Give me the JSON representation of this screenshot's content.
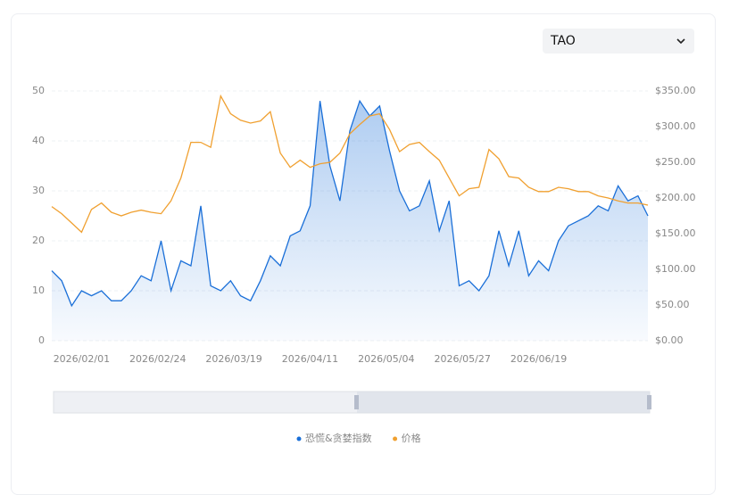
{
  "selector": {
    "value": "TAO"
  },
  "chart_data": {
    "type": "line",
    "x": [
      "2026/01/23",
      "2026/01/26",
      "2026/01/29",
      "2026/02/01",
      "2026/02/04",
      "2026/02/07",
      "2026/02/10",
      "2026/02/13",
      "2026/02/16",
      "2026/02/19",
      "2026/02/22",
      "2026/02/25",
      "2026/02/28",
      "2026/03/03",
      "2026/03/06",
      "2026/03/09",
      "2026/03/12",
      "2026/03/15",
      "2026/03/18",
      "2026/03/21",
      "2026/03/24",
      "2026/03/27",
      "2026/03/30",
      "2026/04/02",
      "2026/04/05",
      "2026/04/08",
      "2026/04/11",
      "2026/04/14",
      "2026/04/17",
      "2026/04/20",
      "2026/04/23",
      "2026/04/26",
      "2026/04/29",
      "2026/05/02",
      "2026/05/05",
      "2026/05/08",
      "2026/05/11",
      "2026/05/14",
      "2026/05/17",
      "2026/05/20",
      "2026/05/23",
      "2026/05/26",
      "2026/05/29",
      "2026/06/01",
      "2026/06/04",
      "2026/06/07",
      "2026/06/10",
      "2026/06/13",
      "2026/06/16",
      "2026/06/19",
      "2026/06/22",
      "2026/06/25",
      "2026/06/28",
      "2026/07/01",
      "2026/07/04",
      "2026/07/07",
      "2026/07/10",
      "2026/07/13",
      "2026/07/16",
      "2026/07/19",
      "2026/07/22"
    ],
    "xlim": [
      "2026/01/23",
      "2026/07/22"
    ],
    "xticks": [
      "2026/02/01",
      "2026/02/24",
      "2026/03/19",
      "2026/04/11",
      "2026/05/04",
      "2026/05/27",
      "2026/06/19"
    ],
    "series": [
      {
        "name": "恐慌&贪婪指数",
        "color": "#1a6fd8",
        "area": true,
        "values": [
          14,
          12,
          7,
          10,
          9,
          10,
          8,
          8,
          10,
          13,
          12,
          20,
          10,
          16,
          15,
          27,
          11,
          10,
          12,
          9,
          8,
          12,
          17,
          15,
          21,
          22,
          27,
          48,
          35,
          28,
          42,
          48,
          45,
          47,
          38,
          30,
          26,
          27,
          32,
          22,
          28,
          11,
          12,
          10,
          13,
          22,
          15,
          22,
          13,
          16,
          14,
          20,
          23,
          24,
          25,
          27,
          26,
          31,
          28,
          29,
          25
        ]
      },
      {
        "name": "价格",
        "color": "#f0a030",
        "axis": "y2",
        "values": [
          188,
          178,
          165,
          152,
          184,
          193,
          180,
          175,
          180,
          183,
          180,
          178,
          196,
          228,
          278,
          278,
          271,
          343,
          318,
          309,
          305,
          308,
          321,
          263,
          243,
          253,
          243,
          248,
          250,
          263,
          290,
          303,
          315,
          318,
          296,
          265,
          275,
          278,
          265,
          253,
          228,
          203,
          213,
          215,
          268,
          255,
          230,
          228,
          215,
          209,
          209,
          215,
          213,
          209,
          209,
          203,
          200,
          196,
          193,
          193,
          190
        ]
      }
    ],
    "ylim": [
      0,
      50
    ],
    "yticks": [
      0,
      10,
      20,
      30,
      40,
      50
    ],
    "y2lim": [
      0,
      350
    ],
    "y2ticks": [
      {
        "value": 0,
        "label": "$0.00"
      },
      {
        "value": 50,
        "label": "$50.00"
      },
      {
        "value": 100,
        "label": "$100.00"
      },
      {
        "value": 150,
        "label": "$150.00"
      },
      {
        "value": 200,
        "label": "$200.00"
      },
      {
        "value": 250,
        "label": "$250.00"
      },
      {
        "value": 300,
        "label": "$300.00"
      },
      {
        "value": 350,
        "label": "$350.00"
      }
    ],
    "grid": true
  }
}
